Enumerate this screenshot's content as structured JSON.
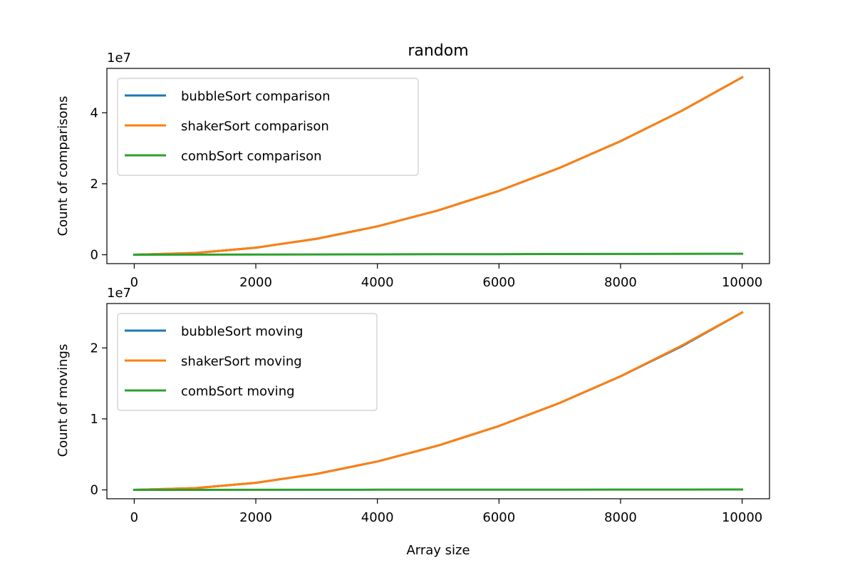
{
  "figure": {
    "title": "random"
  },
  "chart_data": [
    {
      "type": "line",
      "title": "random",
      "xlabel": "",
      "ylabel": "Count of comparisons",
      "offset_text": "1e7",
      "xlim": [
        -450,
        10450
      ],
      "ylim": [
        -0.25,
        5.25
      ],
      "scale": 10000000,
      "xticks": [
        0,
        2000,
        4000,
        6000,
        8000,
        10000
      ],
      "xtick_labels": [
        "0",
        "2000",
        "4000",
        "6000",
        "8000",
        "10000"
      ],
      "yticks": [
        0,
        2,
        4
      ],
      "ytick_labels": [
        "0",
        "2",
        "4"
      ],
      "legend_position": "upper-left",
      "x": [
        0,
        1000,
        2000,
        3000,
        4000,
        5000,
        6000,
        7000,
        8000,
        9000,
        10000
      ],
      "series": [
        {
          "name": "bubbleSort comparison",
          "color": "#1f77b4",
          "values": [
            0,
            0.05,
            0.2,
            0.45,
            0.8,
            1.25,
            1.8,
            2.45,
            3.2,
            4.05,
            5.0
          ]
        },
        {
          "name": "shakerSort comparison",
          "color": "#ff7f0e",
          "values": [
            0,
            0.05,
            0.2,
            0.45,
            0.8,
            1.25,
            1.8,
            2.45,
            3.2,
            4.05,
            5.0
          ]
        },
        {
          "name": "combSort comparison",
          "color": "#2ca02c",
          "values": [
            0,
            0.002,
            0.005,
            0.008,
            0.011,
            0.014,
            0.017,
            0.02,
            0.023,
            0.026,
            0.03
          ]
        }
      ]
    },
    {
      "type": "line",
      "title": "",
      "xlabel": "Array size",
      "ylabel": "Count of movings",
      "offset_text": "1e7",
      "xlim": [
        -450,
        10450
      ],
      "ylim": [
        -0.125,
        2.625
      ],
      "scale": 10000000,
      "xticks": [
        0,
        2000,
        4000,
        6000,
        8000,
        10000
      ],
      "xtick_labels": [
        "0",
        "2000",
        "4000",
        "6000",
        "8000",
        "10000"
      ],
      "yticks": [
        0,
        1,
        2
      ],
      "ytick_labels": [
        "0",
        "1",
        "2"
      ],
      "legend_position": "upper-left",
      "x": [
        0,
        1000,
        2000,
        3000,
        4000,
        5000,
        6000,
        7000,
        8000,
        9000,
        10000
      ],
      "series": [
        {
          "name": "bubbleSort moving",
          "color": "#1f77b4",
          "values": [
            0,
            0.025,
            0.1,
            0.225,
            0.4,
            0.625,
            0.9,
            1.225,
            1.6,
            2.02,
            2.5
          ]
        },
        {
          "name": "shakerSort moving",
          "color": "#ff7f0e",
          "values": [
            0,
            0.025,
            0.1,
            0.225,
            0.4,
            0.625,
            0.9,
            1.225,
            1.6,
            2.03,
            2.5
          ]
        },
        {
          "name": "combSort moving",
          "color": "#2ca02c",
          "values": [
            0,
            0.0005,
            0.001,
            0.0015,
            0.002,
            0.0025,
            0.003,
            0.0035,
            0.004,
            0.0045,
            0.005
          ]
        }
      ]
    }
  ]
}
